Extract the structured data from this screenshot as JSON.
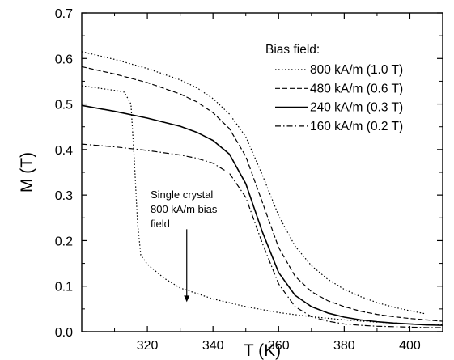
{
  "chart_data": {
    "type": "line",
    "xlabel": "T (K)",
    "ylabel": "M (T)",
    "xlim": [
      300,
      410
    ],
    "ylim": [
      0,
      0.7
    ],
    "xticks": [
      320,
      340,
      360,
      380,
      400
    ],
    "yticks": [
      0.0,
      0.1,
      0.2,
      0.3,
      0.4,
      0.5,
      0.6,
      0.7
    ],
    "ytick_labels": [
      "0.0",
      "0.1",
      "0.2",
      "0.3",
      "0.4",
      "0.5",
      "0.6",
      "0.7"
    ],
    "grid": false,
    "legend": {
      "title": "Bias field:",
      "placement": "top-right",
      "entries": [
        "800 kA/m (1.0 T)",
        "480 kA/m (0.6 T)",
        "240 kA/m (0.3 T)",
        "160 kA/m (0.2 T)"
      ]
    },
    "series": [
      {
        "name": "800 kA/m (1.0 T)",
        "style": "dotted",
        "x": [
          300,
          310,
          320,
          330,
          335,
          340,
          345,
          350,
          355,
          360,
          365,
          370,
          375,
          380,
          385,
          390,
          395,
          400,
          405
        ],
        "y": [
          0.615,
          0.598,
          0.578,
          0.553,
          0.536,
          0.512,
          0.478,
          0.428,
          0.345,
          0.255,
          0.188,
          0.145,
          0.115,
          0.093,
          0.077,
          0.064,
          0.054,
          0.046,
          0.039
        ]
      },
      {
        "name": "480 kA/m (0.6 T)",
        "style": "dashed",
        "x": [
          300,
          310,
          320,
          330,
          335,
          340,
          345,
          350,
          355,
          360,
          365,
          370,
          375,
          380,
          385,
          390,
          395,
          400,
          405,
          410
        ],
        "y": [
          0.582,
          0.566,
          0.547,
          0.522,
          0.505,
          0.481,
          0.446,
          0.385,
          0.285,
          0.185,
          0.122,
          0.088,
          0.068,
          0.055,
          0.045,
          0.038,
          0.033,
          0.029,
          0.026,
          0.023
        ]
      },
      {
        "name": "240 kA/m (0.3 T)",
        "style": "solid",
        "x": [
          300,
          310,
          320,
          330,
          335,
          340,
          345,
          350,
          355,
          360,
          365,
          370,
          375,
          380,
          385,
          390,
          395,
          400,
          405,
          410
        ],
        "y": [
          0.497,
          0.484,
          0.469,
          0.451,
          0.438,
          0.42,
          0.39,
          0.325,
          0.22,
          0.13,
          0.08,
          0.055,
          0.041,
          0.032,
          0.026,
          0.022,
          0.019,
          0.017,
          0.015,
          0.014
        ]
      },
      {
        "name": "160 kA/m (0.2 T)",
        "style": "dashdot",
        "x": [
          300,
          310,
          320,
          330,
          335,
          340,
          345,
          350,
          355,
          360,
          365,
          370,
          375,
          380,
          385,
          390,
          395,
          400,
          405,
          410
        ],
        "y": [
          0.412,
          0.406,
          0.398,
          0.388,
          0.381,
          0.37,
          0.348,
          0.295,
          0.195,
          0.105,
          0.055,
          0.033,
          0.023,
          0.017,
          0.014,
          0.012,
          0.011,
          0.01,
          0.009,
          0.009
        ]
      },
      {
        "name": "",
        "style": "dotted",
        "x": [
          300,
          305,
          310,
          313,
          315,
          316,
          317,
          318,
          320,
          325,
          330,
          340,
          350,
          360,
          370,
          380,
          390,
          400,
          410
        ],
        "y": [
          0.54,
          0.535,
          0.53,
          0.526,
          0.5,
          0.38,
          0.24,
          0.168,
          0.148,
          0.118,
          0.096,
          0.072,
          0.055,
          0.042,
          0.033,
          0.026,
          0.021,
          0.017,
          0.015
        ]
      }
    ],
    "annotations": [
      {
        "lines": [
          "Single crystal",
          "800 kA/m bias",
          "field"
        ],
        "arrow_from": [
          332,
          0.225
        ],
        "arrow_to": [
          332,
          0.065
        ]
      }
    ]
  }
}
